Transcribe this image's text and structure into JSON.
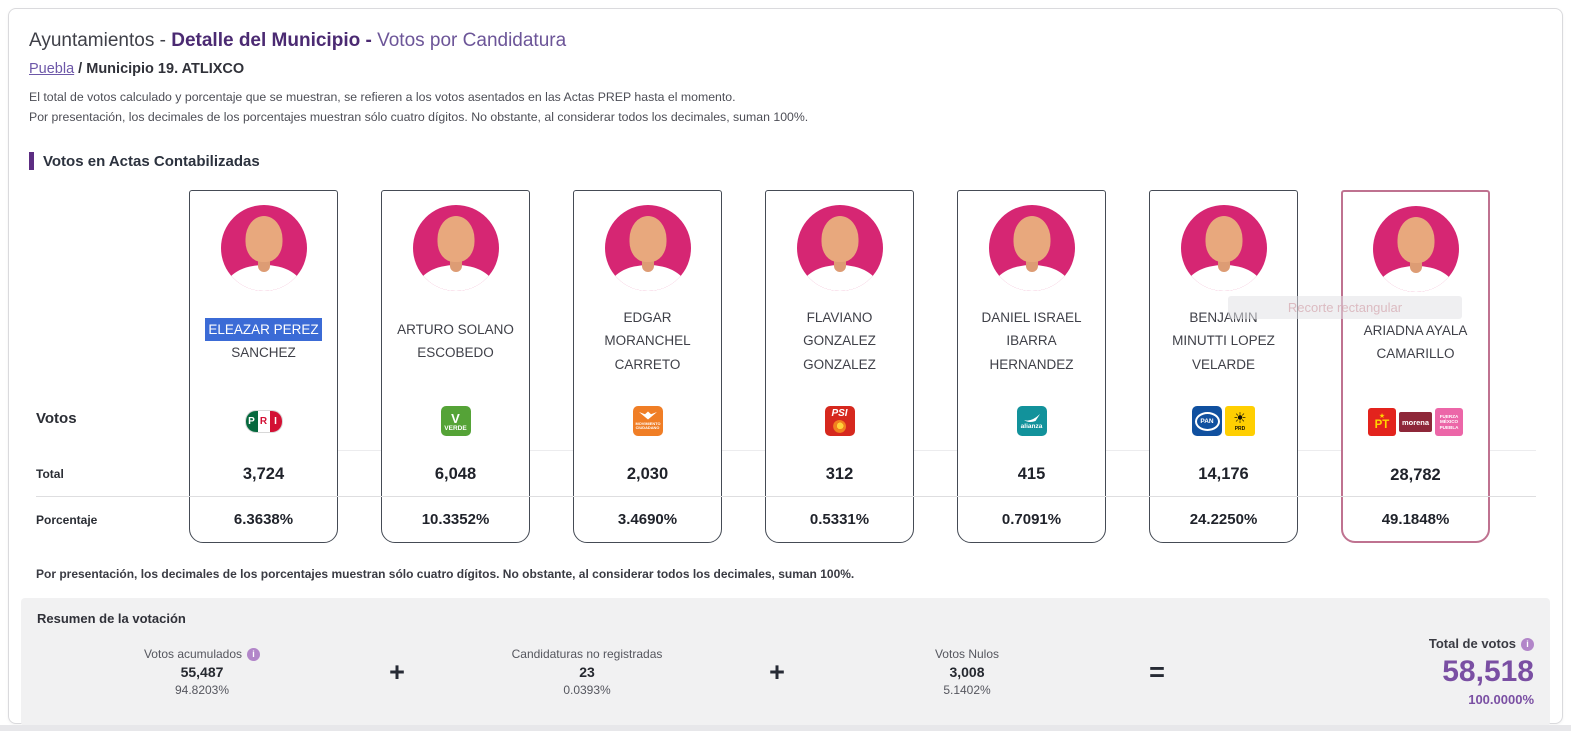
{
  "header": {
    "title_part1": "Ayuntamientos - ",
    "title_part2": "Detalle del Municipio - ",
    "title_part3": "Votos por Candidatura",
    "breadcrumb_link": "Puebla",
    "breadcrumb_sep": " / ",
    "breadcrumb_current": "Municipio 19. ATLIXCO",
    "note1": "El total de votos calculado y porcentaje que se muestran, se refieren a los votos asentados en las Actas PREP hasta el momento.",
    "note2": "Por presentación, los decimales de los porcentajes muestran sólo cuatro dígitos. No obstante, al considerar todos los decimales, suman 100%."
  },
  "section": {
    "title": "Votos en Actas Contabilizadas"
  },
  "row_labels": {
    "votos": "Votos",
    "total": "Total",
    "porcentaje": "Porcentaje"
  },
  "candidates": [
    {
      "name_lines": [
        {
          "text": "ELEAZAR PEREZ",
          "selected": true
        },
        {
          "text": "SANCHEZ"
        }
      ],
      "logos": [
        {
          "id": "pri",
          "name": "PRI",
          "chars": [
            "P",
            "R",
            "I"
          ]
        }
      ],
      "total": "3,724",
      "pct": "6.3638%"
    },
    {
      "name_lines": [
        {
          "text": "ARTURO SOLANO"
        },
        {
          "text": "ESCOBEDO"
        }
      ],
      "logos": [
        {
          "id": "pvem",
          "name": "Partido Verde",
          "glyph": "V",
          "label": "VERDE"
        }
      ],
      "total": "6,048",
      "pct": "10.3352%"
    },
    {
      "name_lines": [
        {
          "text": "EDGAR"
        },
        {
          "text": "MORANCHEL"
        },
        {
          "text": "CARRETO"
        }
      ],
      "logos": [
        {
          "id": "mc",
          "name": "Movimiento Ciudadano",
          "label": "MOVIMIENTO CIUDADANO"
        }
      ],
      "total": "2,030",
      "pct": "3.4690%"
    },
    {
      "name_lines": [
        {
          "text": "FLAVIANO"
        },
        {
          "text": "GONZALEZ"
        },
        {
          "text": "GONZALEZ"
        }
      ],
      "logos": [
        {
          "id": "psi",
          "name": "PSI",
          "label": "PSI"
        }
      ],
      "total": "312",
      "pct": "0.5331%"
    },
    {
      "name_lines": [
        {
          "text": "DANIEL ISRAEL"
        },
        {
          "text": "IBARRA"
        },
        {
          "text": "HERNANDEZ"
        }
      ],
      "logos": [
        {
          "id": "alianza",
          "name": "Nueva Alianza Puebla",
          "label": "alianza"
        }
      ],
      "total": "415",
      "pct": "0.7091%"
    },
    {
      "name_lines": [
        {
          "text": "BENJAMIN"
        },
        {
          "text": "MINUTTI LOPEZ"
        },
        {
          "text": "VELARDE"
        }
      ],
      "logos": [
        {
          "id": "pan",
          "name": "PAN",
          "label": "PAN"
        },
        {
          "id": "prd",
          "name": "PRD",
          "glyph": "☀",
          "label": "PRD"
        }
      ],
      "total": "14,176",
      "pct": "24.2250%"
    },
    {
      "name_lines": [
        {
          "text": "ARIADNA AYALA"
        },
        {
          "text": "CAMARILLO"
        }
      ],
      "logos": [
        {
          "id": "pt",
          "name": "PT",
          "glyph": "★",
          "label": "PT"
        },
        {
          "id": "morena",
          "name": "Morena",
          "label": "morena"
        },
        {
          "id": "fm",
          "name": "Fuerza México Puebla",
          "label": "FUERZA MÉXICO PUEBLA"
        }
      ],
      "total": "28,782",
      "pct": "49.1848%",
      "leading": true
    }
  ],
  "post_note": "Por presentación, los decimales de los porcentajes muestran sólo cuatro dígitos. No obstante, al considerar todos los decimales, suman 100%.",
  "summary": {
    "title": "Resumen de la votación",
    "acumulados": {
      "label": "Votos acumulados",
      "value": "55,487",
      "pct": "94.8203%"
    },
    "operators": [
      "+",
      "+",
      "="
    ],
    "no_registradas": {
      "label": "Candidaturas no registradas",
      "value": "23",
      "pct": "0.0393%"
    },
    "nulos": {
      "label": "Votos Nulos",
      "value": "3,008",
      "pct": "5.1402%"
    },
    "total": {
      "label": "Total de votos",
      "value": "58,518",
      "pct": "100.0000%"
    },
    "info_icon_glyph": "i"
  },
  "artifact": {
    "text": "Recorte rectangular"
  },
  "colors": {
    "accent_purple": "#5c2d82",
    "total_purple": "#7a4fa3",
    "leading_border": "#bf7290",
    "avatar_pink": "#d62673",
    "selection_blue": "#3b6bd6"
  }
}
